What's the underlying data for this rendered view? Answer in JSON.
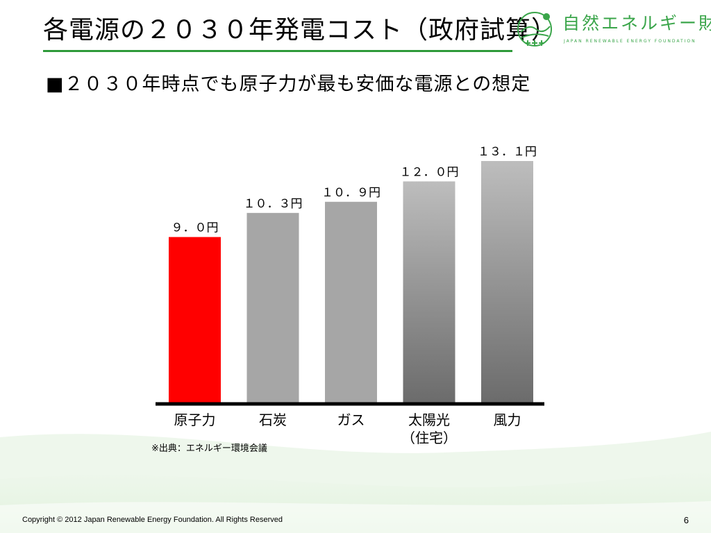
{
  "slide": {
    "title": "各電源の２０３０年発電コスト（政府試算）",
    "subheading": "■２０３０年時点でも原子力が最も安価な電源との想定",
    "source_note": "※出典：エネルギー環境会議",
    "footer": "Copyright © 2012 Japan Renewable Energy Foundation. All Rights Reserved",
    "page_number": "6"
  },
  "logo": {
    "name_jp": "自然エネルギー財団",
    "name_en": "JAPAN RENEWABLE ENERGY FOUNDATION",
    "color": "#3aa54a"
  },
  "colors": {
    "accent_rule": "#2f9a3a",
    "nuclear_bar": "#ff0000",
    "axis": "#000000"
  },
  "chart_data": {
    "type": "bar",
    "categories": [
      "原子力",
      "石炭",
      "ガス",
      "太陽光\n（住宅）",
      "風力"
    ],
    "values": [
      9.0,
      10.3,
      10.9,
      12.0,
      13.1
    ],
    "data_labels": [
      "９．０円",
      "１０．３円",
      "１０．９円",
      "１２．０円",
      "１３．１円"
    ],
    "unit": "円",
    "title": "",
    "xlabel": "",
    "ylabel": "",
    "ylim": [
      0,
      13.1
    ],
    "bar_styles": [
      "solid-red",
      "solid-gray",
      "solid-gray",
      "gradient-gray",
      "gradient-gray"
    ],
    "grid": false,
    "legend": "none"
  }
}
